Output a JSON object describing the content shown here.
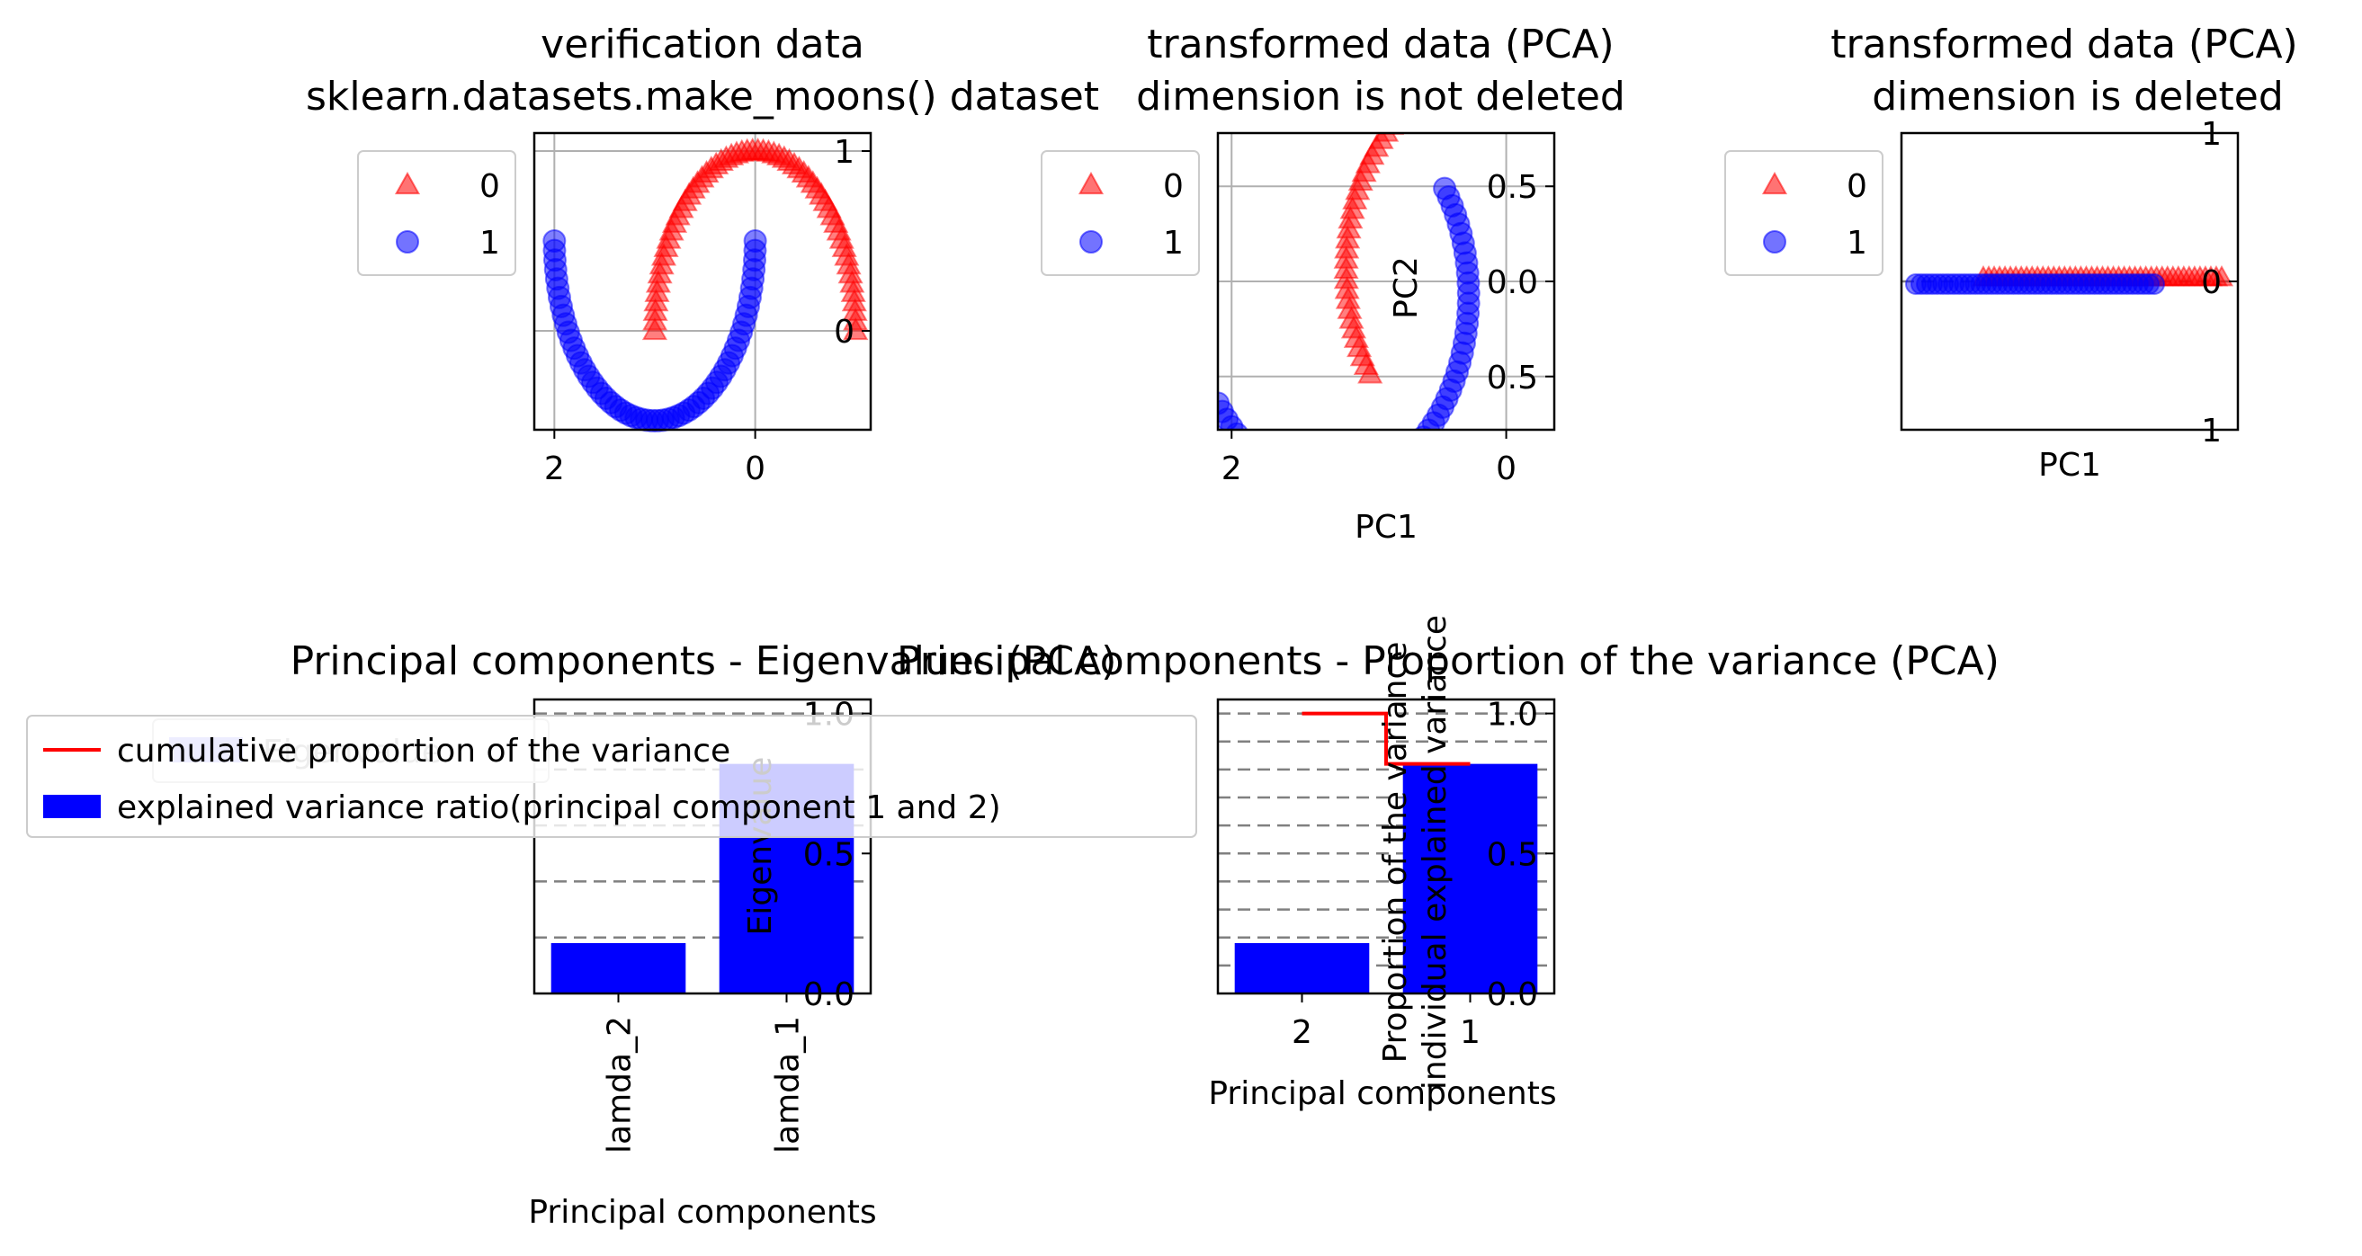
{
  "chart_data": [
    {
      "type": "scatter",
      "title_lines": [
        "verification data",
        "sklearn.datasets.make_moons() dataset"
      ],
      "xlabel": "",
      "ylabel": "",
      "x_ticks": [
        "2",
        "0"
      ],
      "y_ticks": [
        "1",
        "0"
      ],
      "xlim": [
        2.2,
        -1.15
      ],
      "ylim": [
        -0.55,
        1.1
      ],
      "grid": true,
      "legend": {
        "placement": "outside-left",
        "entries": [
          "0",
          "1"
        ]
      },
      "series": [
        {
          "name": "0",
          "marker": "triangle",
          "color": "#ff0000",
          "shape": "upper-moon"
        },
        {
          "name": "1",
          "marker": "circle",
          "color": "#0000ff",
          "shape": "lower-moon"
        }
      ]
    },
    {
      "type": "scatter",
      "title_lines": [
        "transformed data (PCA)",
        "dimension is not deleted"
      ],
      "xlabel": "PC1",
      "ylabel": "PC2",
      "x_ticks": [
        "2",
        "0"
      ],
      "y_ticks": [
        "0.5",
        "0.0",
        "0.5"
      ],
      "xlim": [
        2.1,
        -0.35
      ],
      "ylim": [
        -0.78,
        0.78
      ],
      "grid": true,
      "legend": {
        "placement": "outside-left",
        "entries": [
          "0",
          "1"
        ]
      },
      "series": [
        {
          "name": "0",
          "marker": "triangle",
          "color": "#ff0000"
        },
        {
          "name": "1",
          "marker": "circle",
          "color": "#0000ff"
        }
      ]
    },
    {
      "type": "scatter",
      "title_lines": [
        "transformed data (PCA)",
        "dimension is deleted"
      ],
      "xlabel": "PC1",
      "ylabel": "",
      "y_ticks": [
        "1",
        "0",
        "1"
      ],
      "ylim": [
        -1,
        1
      ],
      "grid": false,
      "legend": {
        "placement": "outside-left",
        "entries": [
          "0",
          "1"
        ]
      },
      "series": [
        {
          "name": "0",
          "marker": "triangle",
          "color": "#ff0000"
        },
        {
          "name": "1",
          "marker": "circle",
          "color": "#0000ff"
        }
      ]
    },
    {
      "type": "bar",
      "title": "Principal components - Eigenvalues (PCA)",
      "categories": [
        "lamda_2",
        "lamda_1"
      ],
      "values": [
        0.18,
        0.82
      ],
      "xlabel": "Principal components",
      "ylabel": "Eigenvalue",
      "y_ticks": [
        "0.0",
        "0.5",
        "1.0"
      ],
      "ylim": [
        0,
        1.05
      ],
      "legend": {
        "placement": "upper-left",
        "entries": [
          "Eigenvalue"
        ]
      },
      "color": "#0000ff"
    },
    {
      "type": "bar",
      "title": "Principal components - Proportion of the variance (PCA)",
      "categories": [
        "2",
        "1"
      ],
      "values": [
        0.18,
        0.82
      ],
      "cumulative": [
        1.0,
        0.82
      ],
      "xlabel": "Principal components",
      "ylabel": "Proportion of the variance individual explained variance",
      "y_ticks": [
        "0.0",
        "0.5",
        "1.0"
      ],
      "ylim": [
        0,
        1.05
      ],
      "legend": {
        "placement": "outside-left",
        "entries": [
          "cumulative proportion of the variance",
          " explained variance ratio(principal component 1 and 2)"
        ]
      },
      "bar_color": "#0000ff",
      "line_color": "#ff0000"
    }
  ]
}
